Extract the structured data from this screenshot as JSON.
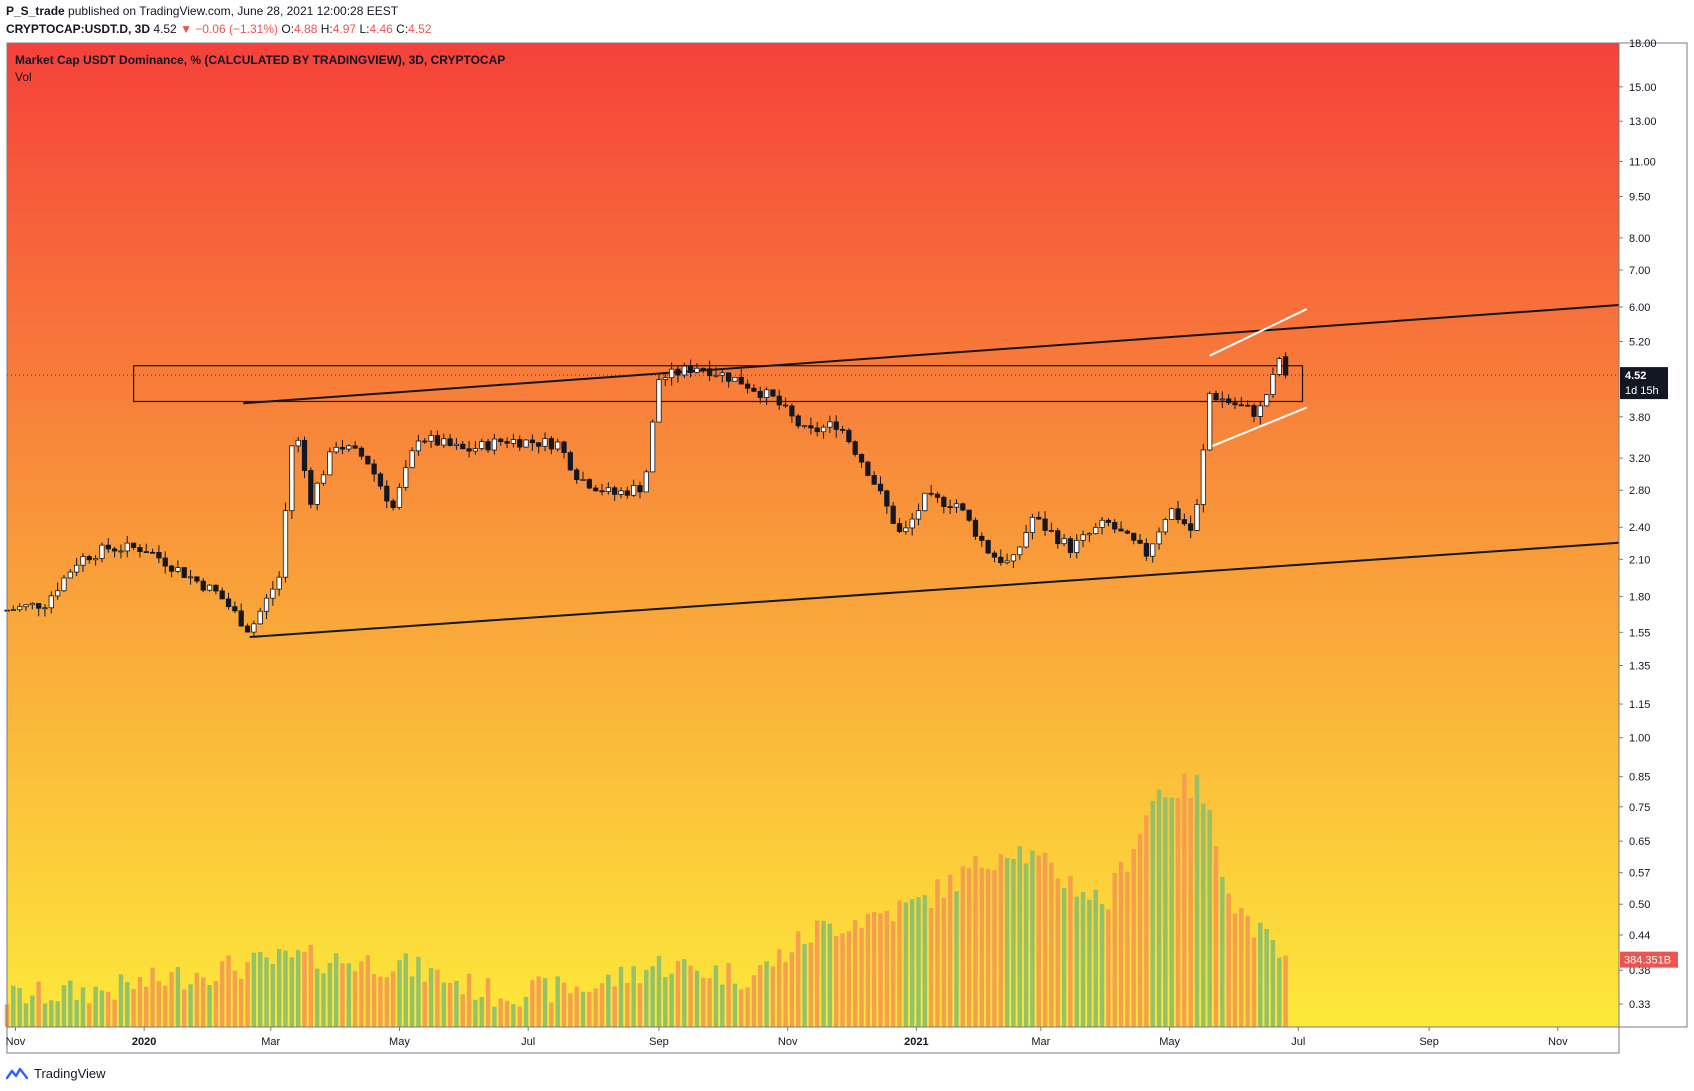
{
  "header": {
    "author": "P_S_trade",
    "published": "published on TradingView.com, June 28, 2021 12:00:28 EEST",
    "symbol": "CRYPTOCAP:USDT.D, 3D",
    "price": "4.52",
    "change": "▼ −0.06 (−1.31%)",
    "o_label": "O:",
    "o": "4.88",
    "h_label": "H:",
    "h": "4.97",
    "l_label": "L:",
    "l": "4.46",
    "c_label": "C:",
    "c": "4.52"
  },
  "legend": {
    "title": "Market Cap USDT Dominance, % (CALCULATED BY TRADINGVIEW), 3D, CRYPTOCAP",
    "vol": "Vol"
  },
  "footer": {
    "brand": "TradingView"
  },
  "colors": {
    "bg_top": "#f5413a",
    "bg_mid": "#f9a13a",
    "bg_bottom": "#fde93a",
    "vol_up": "#8fbf6a",
    "vol_down": "#f39c50",
    "candle_up": "#ffffff",
    "candle_down": "#131722",
    "price_label_bg": "#131722",
    "vol_label_bg": "#ef5350"
  },
  "chart_data": {
    "type": "candlestick",
    "scale": "log",
    "ylim": [
      0.3,
      18.0
    ],
    "y_ticks": [
      "18.00",
      "15.00",
      "13.00",
      "11.00",
      "9.50",
      "8.00",
      "7.00",
      "6.00",
      "5.20",
      "4.52",
      "3.80",
      "3.20",
      "2.80",
      "2.40",
      "2.10",
      "1.80",
      "1.55",
      "1.35",
      "1.15",
      "1.00",
      "0.85",
      "0.75",
      "0.65",
      "0.57",
      "0.50",
      "0.44",
      "0.38",
      "0.33"
    ],
    "x_ticks": [
      "Nov",
      "2020",
      "Mar",
      "May",
      "Jul",
      "Sep",
      "Nov",
      "2021",
      "Mar",
      "May",
      "Jul",
      "Sep",
      "Nov"
    ],
    "x_range": [
      "2019-10-28",
      "2021-11-30"
    ],
    "x_tick_dates": [
      "2019-11-01",
      "2020-01-01",
      "2020-03-01",
      "2020-05-01",
      "2020-07-01",
      "2020-09-01",
      "2020-11-01",
      "2021-01-01",
      "2021-03-01",
      "2021-05-01",
      "2021-07-01",
      "2021-09-01",
      "2021-11-01"
    ],
    "last_price": "4.52",
    "countdown": "1d 15h",
    "last_volume": "384.351B",
    "anchors": [
      {
        "date": "2019-10-28",
        "value": 1.7
      },
      {
        "date": "2019-11-15",
        "value": 1.75
      },
      {
        "date": "2019-12-01",
        "value": 2.1
      },
      {
        "date": "2019-12-15",
        "value": 2.2
      },
      {
        "date": "2020-01-01",
        "value": 2.2
      },
      {
        "date": "2020-01-20",
        "value": 1.98
      },
      {
        "date": "2020-02-05",
        "value": 1.82
      },
      {
        "date": "2020-02-20",
        "value": 1.56
      },
      {
        "date": "2020-03-05",
        "value": 1.95
      },
      {
        "date": "2020-03-12",
        "value": 3.7
      },
      {
        "date": "2020-03-20",
        "value": 2.7
      },
      {
        "date": "2020-04-01",
        "value": 3.4
      },
      {
        "date": "2020-04-15",
        "value": 3.2
      },
      {
        "date": "2020-04-28",
        "value": 2.6
      },
      {
        "date": "2020-05-10",
        "value": 3.5
      },
      {
        "date": "2020-06-01",
        "value": 3.3
      },
      {
        "date": "2020-06-20",
        "value": 3.45
      },
      {
        "date": "2020-07-15",
        "value": 3.4
      },
      {
        "date": "2020-07-25",
        "value": 2.95
      },
      {
        "date": "2020-08-10",
        "value": 2.75
      },
      {
        "date": "2020-08-25",
        "value": 2.85
      },
      {
        "date": "2020-09-01",
        "value": 4.45
      },
      {
        "date": "2020-09-20",
        "value": 4.7
      },
      {
        "date": "2020-10-10",
        "value": 4.4
      },
      {
        "date": "2020-10-25",
        "value": 4.1
      },
      {
        "date": "2020-11-10",
        "value": 3.55
      },
      {
        "date": "2020-11-25",
        "value": 3.7
      },
      {
        "date": "2020-12-10",
        "value": 3.0
      },
      {
        "date": "2020-12-25",
        "value": 2.3
      },
      {
        "date": "2021-01-05",
        "value": 2.7
      },
      {
        "date": "2021-01-20",
        "value": 2.65
      },
      {
        "date": "2021-02-05",
        "value": 2.15
      },
      {
        "date": "2021-02-15",
        "value": 2.05
      },
      {
        "date": "2021-02-25",
        "value": 2.5
      },
      {
        "date": "2021-03-15",
        "value": 2.2
      },
      {
        "date": "2021-04-01",
        "value": 2.45
      },
      {
        "date": "2021-04-20",
        "value": 2.15
      },
      {
        "date": "2021-05-01",
        "value": 2.6
      },
      {
        "date": "2021-05-12",
        "value": 2.35
      },
      {
        "date": "2021-05-16",
        "value": 2.9
      },
      {
        "date": "2021-05-19",
        "value": 4.2
      },
      {
        "date": "2021-06-01",
        "value": 4.0
      },
      {
        "date": "2021-06-12",
        "value": 3.85
      },
      {
        "date": "2021-06-19",
        "value": 4.45
      },
      {
        "date": "2021-06-22",
        "value": 4.85
      },
      {
        "date": "2021-06-27",
        "value": 4.52
      }
    ],
    "volume_profile": [
      {
        "date": "2019-10-28",
        "value": 0.34
      },
      {
        "date": "2019-12-15",
        "value": 0.35
      },
      {
        "date": "2020-02-01",
        "value": 0.38
      },
      {
        "date": "2020-03-15",
        "value": 0.4
      },
      {
        "date": "2020-05-01",
        "value": 0.39
      },
      {
        "date": "2020-06-15",
        "value": 0.345
      },
      {
        "date": "2020-08-01",
        "value": 0.355
      },
      {
        "date": "2020-09-01",
        "value": 0.39
      },
      {
        "date": "2020-10-15",
        "value": 0.37
      },
      {
        "date": "2020-11-15",
        "value": 0.45
      },
      {
        "date": "2021-01-01",
        "value": 0.5
      },
      {
        "date": "2021-02-15",
        "value": 0.64
      },
      {
        "date": "2021-04-01",
        "value": 0.5
      },
      {
        "date": "2021-04-25",
        "value": 0.8
      },
      {
        "date": "2021-05-15",
        "value": 0.82
      },
      {
        "date": "2021-06-01",
        "value": 0.5
      },
      {
        "date": "2021-06-27",
        "value": 0.384
      }
    ],
    "drawings": {
      "resistance_zone": {
        "from": "2019-12-27",
        "to": "2021-07-03",
        "top": 4.7,
        "bottom": 4.05
      },
      "upper_trendline": {
        "from": [
          "2020-02-17",
          4.02
        ],
        "to": [
          "2021-11-30",
          6.05
        ]
      },
      "lower_trendline": {
        "from": [
          "2020-02-20",
          1.52
        ],
        "to": [
          "2021-11-30",
          2.25
        ]
      },
      "channel_top": {
        "from": [
          "2021-05-20",
          4.9
        ],
        "to": [
          "2021-07-05",
          5.95
        ]
      },
      "channel_bottom": {
        "from": [
          "2021-05-20",
          3.35
        ],
        "to": [
          "2021-07-05",
          3.95
        ]
      }
    }
  }
}
